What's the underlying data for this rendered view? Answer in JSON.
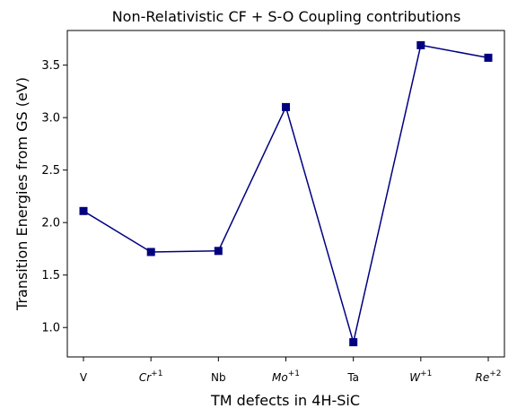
{
  "chart_data": {
    "type": "line",
    "title": "Non-Relativistic CF + S-O Coupling contributions",
    "xlabel": "TM defects in 4H-SiC",
    "ylabel": "Transition Energies from GS (eV)",
    "categories": [
      {
        "base": "V",
        "sup": ""
      },
      {
        "base": "Cr",
        "sup": "+1"
      },
      {
        "base": "Nb",
        "sup": ""
      },
      {
        "base": "Mo",
        "sup": "+1"
      },
      {
        "base": "Ta",
        "sup": ""
      },
      {
        "base": "W",
        "sup": "+1"
      },
      {
        "base": "Re",
        "sup": "+2"
      }
    ],
    "values": [
      2.11,
      1.72,
      1.73,
      3.1,
      0.86,
      3.69,
      3.57
    ],
    "ylim": [
      0.72,
      3.83
    ],
    "yticks": [
      "1.0",
      "1.5",
      "2.0",
      "2.5",
      "3.0",
      "3.5"
    ],
    "ytick_values": [
      1.0,
      1.5,
      2.0,
      2.5,
      3.0,
      3.5
    ],
    "color": "#000080",
    "marker": "square",
    "grid": false,
    "legend": false
  }
}
